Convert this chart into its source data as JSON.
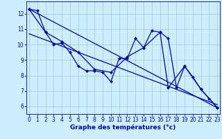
{
  "xlabel": "Graphe des températures (°c)",
  "background_color": "#cceeff",
  "line_color": "#0000bb",
  "series": [
    [
      0,
      12.3
    ],
    [
      1,
      12.2
    ],
    [
      2,
      10.8
    ],
    [
      3,
      10.0
    ],
    [
      4,
      10.1
    ],
    [
      5,
      9.5
    ],
    [
      6,
      8.6
    ],
    [
      7,
      8.3
    ],
    [
      8,
      8.3
    ],
    [
      9,
      8.2
    ],
    [
      10,
      7.6
    ],
    [
      11,
      9.1
    ],
    [
      12,
      9.1
    ],
    [
      13,
      10.4
    ],
    [
      14,
      9.8
    ],
    [
      15,
      10.9
    ],
    [
      16,
      10.8
    ],
    [
      17,
      10.4
    ],
    [
      18,
      7.2
    ],
    [
      19,
      8.6
    ],
    [
      20,
      7.9
    ],
    [
      21,
      7.1
    ],
    [
      22,
      6.5
    ],
    [
      23,
      5.9
    ]
  ],
  "series2": [
    [
      0,
      12.3
    ],
    [
      2,
      10.8
    ],
    [
      4,
      10.2
    ],
    [
      6,
      9.5
    ],
    [
      8,
      8.4
    ],
    [
      10,
      8.2
    ],
    [
      12,
      9.2
    ],
    [
      14,
      9.8
    ],
    [
      16,
      10.8
    ],
    [
      17,
      7.2
    ],
    [
      19,
      8.6
    ],
    [
      21,
      7.1
    ],
    [
      23,
      5.9
    ]
  ],
  "regression_line": [
    [
      0,
      12.3
    ],
    [
      23,
      5.9
    ]
  ],
  "regression_line2": [
    [
      0,
      10.7
    ],
    [
      23,
      6.1
    ]
  ],
  "ylim": [
    5.5,
    12.8
  ],
  "xlim": [
    -0.3,
    23.3
  ],
  "yticks": [
    6,
    7,
    8,
    9,
    10,
    11,
    12
  ],
  "xticks": [
    0,
    1,
    2,
    3,
    4,
    5,
    6,
    7,
    8,
    9,
    10,
    11,
    12,
    13,
    14,
    15,
    16,
    17,
    18,
    19,
    20,
    21,
    22,
    23
  ],
  "grid_color": "#99cccc",
  "marker": "D",
  "markersize": 2.5,
  "linewidth": 0.9,
  "tick_fontsize": 5.5,
  "xlabel_fontsize": 6.5,
  "xlabel_fontweight": "bold"
}
